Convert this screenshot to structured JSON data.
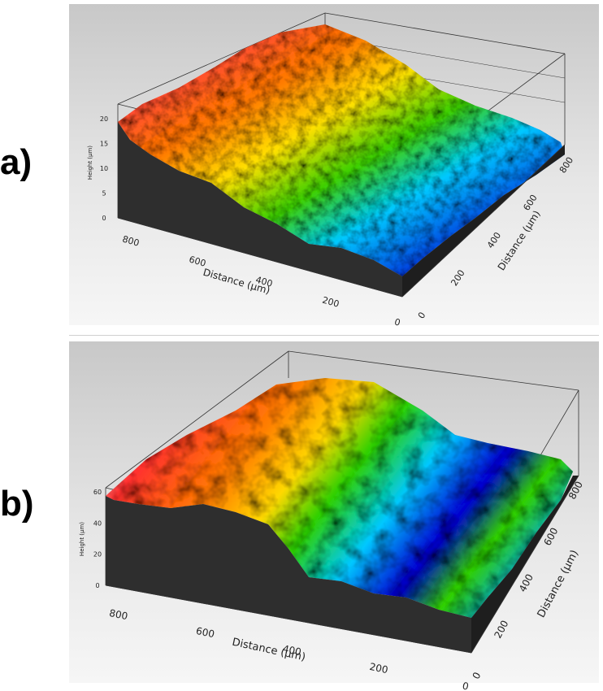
{
  "panels": [
    {
      "label": "a)"
    },
    {
      "label": "b)"
    }
  ],
  "chart_data": [
    {
      "type": "heatmap",
      "panel": "a)",
      "zlabel": "Height (μm)",
      "xlabel": "Distance (μm)",
      "ylabel": "Distance (μm)",
      "z_ticks": [
        "0",
        "5",
        "10",
        "15",
        "20"
      ],
      "x_ticks": [
        "800",
        "600",
        "400",
        "200",
        "0"
      ],
      "y_ticks": [
        "0",
        "200",
        "400",
        "600",
        "800"
      ],
      "zlim": [
        0,
        20
      ],
      "xlim": [
        0,
        900
      ],
      "ylim": [
        0,
        900
      ],
      "colormap": [
        "#0000d0",
        "#00c8ff",
        "#00d000",
        "#ffe000",
        "#ff2000",
        "#ffffff"
      ]
    },
    {
      "type": "heatmap",
      "panel": "b)",
      "zlabel": "Height (μm)",
      "xlabel": "Distance (μm)",
      "ylabel": "Distance (μm)",
      "z_ticks": [
        "0",
        "20",
        "40",
        "60"
      ],
      "x_ticks": [
        "800",
        "600",
        "400",
        "200",
        "0"
      ],
      "y_ticks": [
        "0",
        "200",
        "400",
        "600",
        "800"
      ],
      "zlim": [
        0,
        60
      ],
      "xlim": [
        0,
        900
      ],
      "ylim": [
        0,
        900
      ],
      "colormap": [
        "#0000d0",
        "#00c8ff",
        "#00d000",
        "#ffe000",
        "#ff2000",
        "#ffffff"
      ]
    }
  ]
}
